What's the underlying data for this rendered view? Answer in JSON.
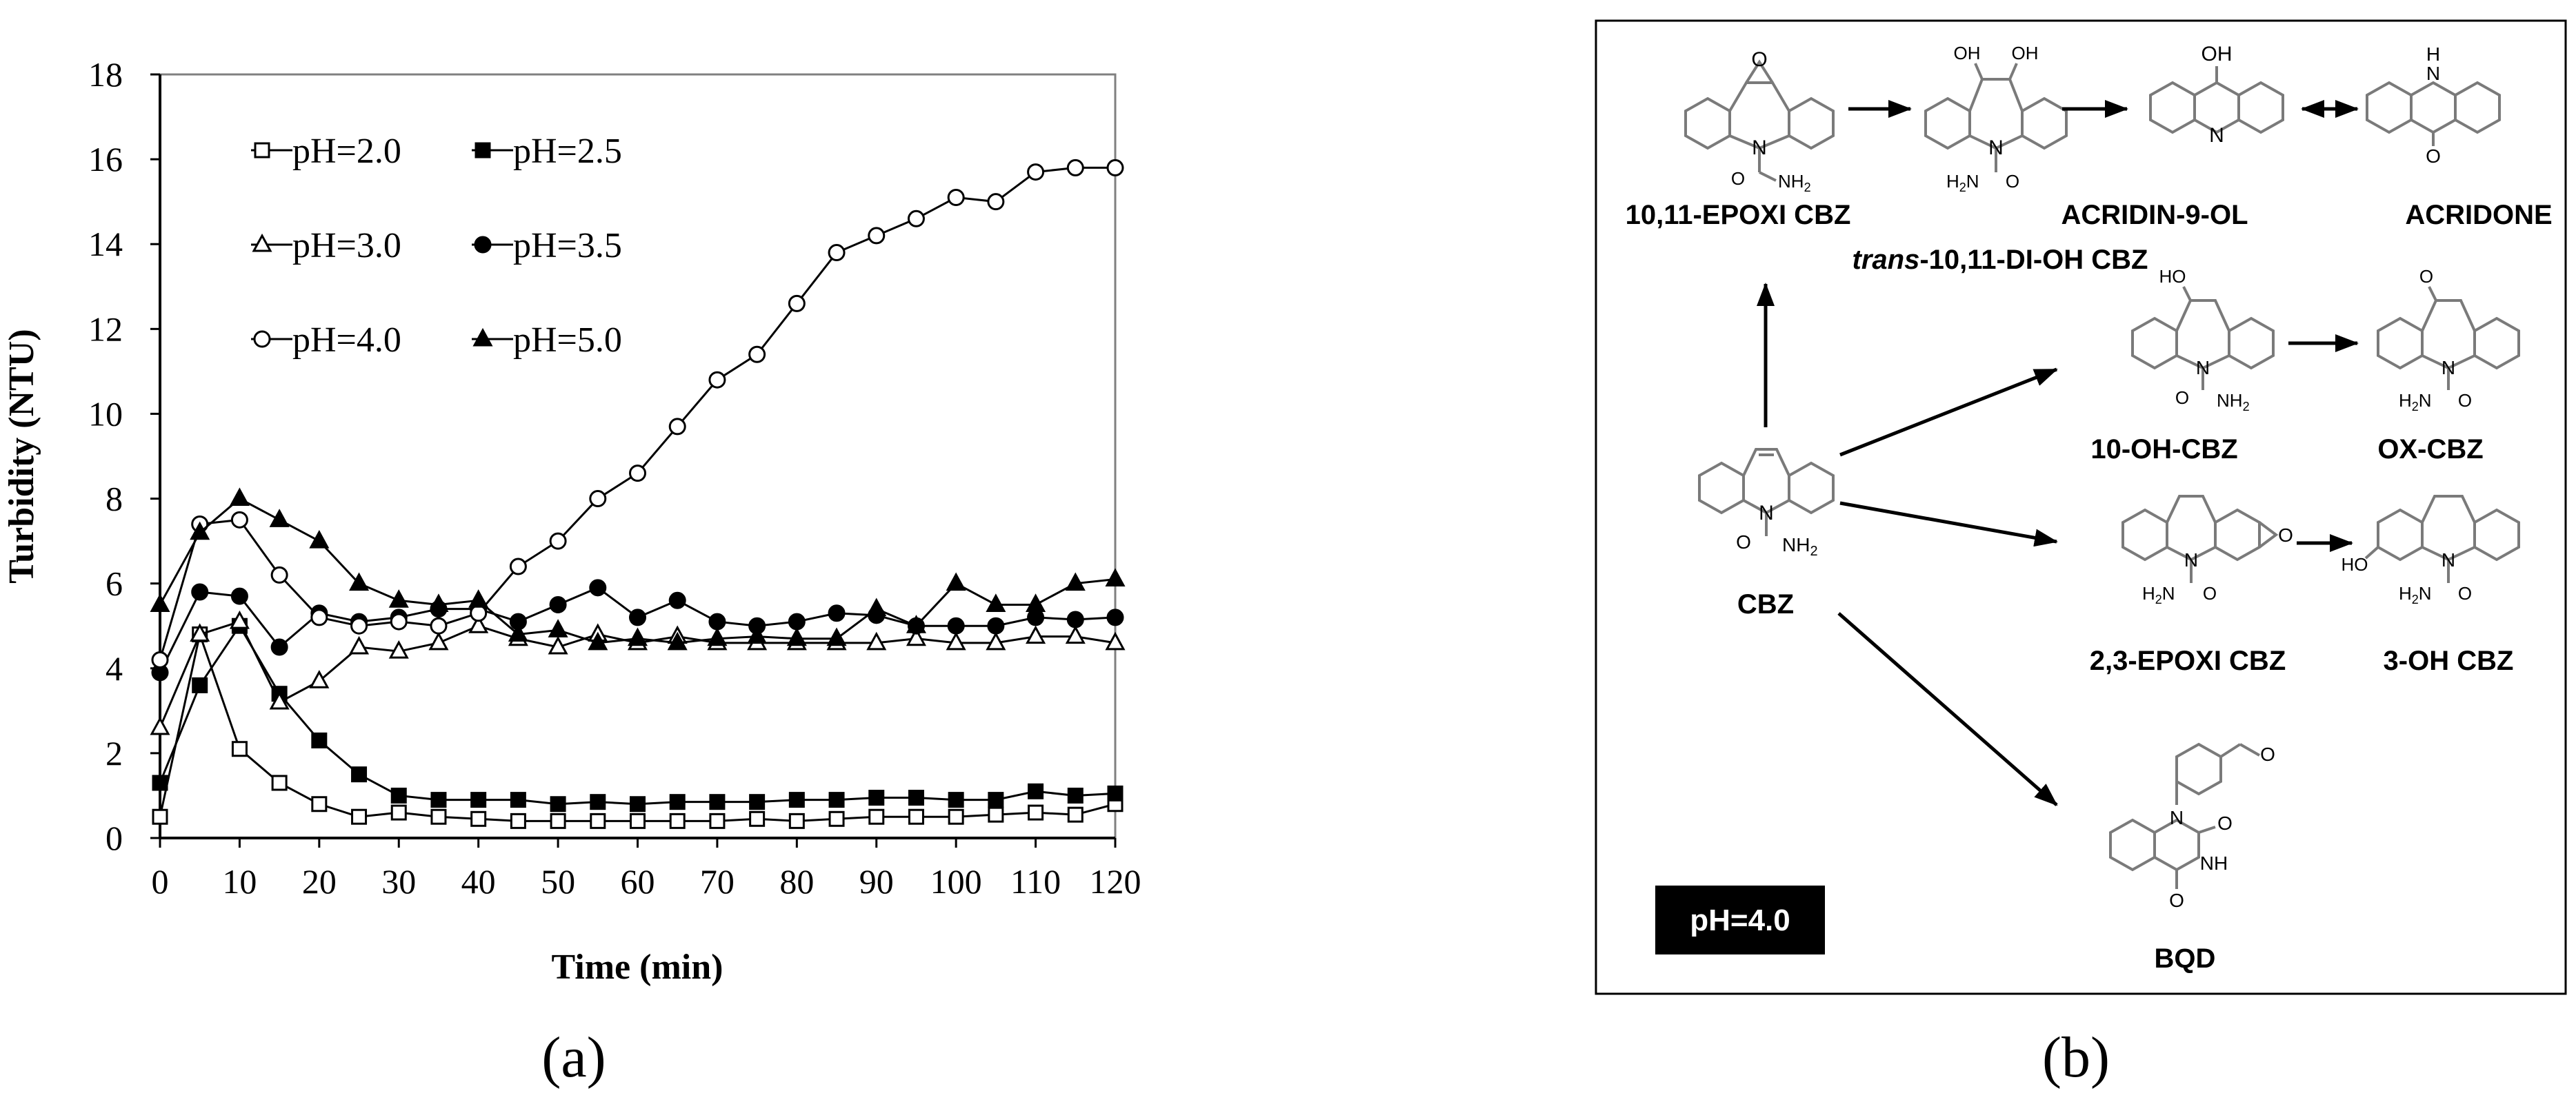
{
  "chart_data": {
    "type": "line",
    "xlabel": "Time (min)",
    "ylabel": "Turbidity (NTU)",
    "xlim": [
      0,
      120
    ],
    "ylim": [
      0,
      18
    ],
    "x_ticks": [
      "0",
      "10",
      "20",
      "30",
      "40",
      "50",
      "60",
      "70",
      "80",
      "90",
      "100",
      "110",
      "120"
    ],
    "y_ticks": [
      "0",
      "2",
      "4",
      "6",
      "8",
      "10",
      "12",
      "14",
      "16",
      "18"
    ],
    "grid": false,
    "legend_position": "upper-left",
    "x": [
      0,
      5,
      10,
      15,
      20,
      25,
      30,
      35,
      40,
      45,
      50,
      55,
      60,
      65,
      70,
      75,
      80,
      85,
      90,
      95,
      100,
      105,
      110,
      115,
      120
    ],
    "series": [
      {
        "name": "pH=2.0",
        "marker": "square-open",
        "values": [
          0.5,
          4.8,
          2.1,
          1.3,
          0.8,
          0.5,
          0.6,
          0.5,
          0.45,
          0.4,
          0.4,
          0.4,
          0.4,
          0.4,
          0.4,
          0.45,
          0.4,
          0.45,
          0.5,
          0.5,
          0.5,
          0.55,
          0.6,
          0.55,
          0.8
        ]
      },
      {
        "name": "pH=2.5",
        "marker": "square-filled",
        "values": [
          1.3,
          3.6,
          5.0,
          3.4,
          2.3,
          1.5,
          1.0,
          0.9,
          0.9,
          0.9,
          0.8,
          0.85,
          0.8,
          0.85,
          0.85,
          0.85,
          0.9,
          0.9,
          0.95,
          0.95,
          0.9,
          0.9,
          1.1,
          1.0,
          1.05
        ]
      },
      {
        "name": "pH=3.0",
        "marker": "triangle-open",
        "values": [
          2.6,
          4.8,
          5.1,
          3.2,
          3.7,
          4.5,
          4.4,
          4.6,
          5.0,
          4.7,
          4.5,
          4.8,
          4.6,
          4.75,
          4.6,
          4.6,
          4.6,
          4.6,
          4.6,
          4.7,
          4.6,
          4.6,
          4.75,
          4.75,
          4.6
        ]
      },
      {
        "name": "pH=3.5",
        "marker": "circle-filled",
        "values": [
          3.9,
          5.8,
          5.7,
          4.5,
          5.3,
          5.1,
          5.2,
          5.4,
          5.4,
          5.1,
          5.5,
          5.9,
          5.2,
          5.6,
          5.1,
          5.0,
          5.1,
          5.3,
          5.25,
          5.0,
          5.0,
          5.0,
          5.2,
          5.15,
          5.2
        ]
      },
      {
        "name": "pH=4.0",
        "marker": "circle-open",
        "values": [
          4.2,
          7.4,
          7.5,
          6.2,
          5.2,
          5.0,
          5.1,
          5.0,
          5.3,
          6.4,
          7.0,
          8.0,
          8.6,
          9.7,
          10.8,
          11.4,
          12.6,
          13.8,
          14.2,
          14.6,
          15.1,
          15.0,
          15.7,
          15.8,
          15.8
        ]
      },
      {
        "name": "pH=5.0",
        "marker": "triangle-filled",
        "values": [
          5.5,
          7.2,
          8.0,
          7.5,
          7.0,
          6.0,
          5.6,
          5.5,
          5.6,
          4.8,
          4.9,
          4.6,
          4.7,
          4.6,
          4.7,
          4.75,
          4.7,
          4.7,
          5.4,
          5.0,
          6.0,
          5.5,
          5.5,
          6.0,
          6.1
        ]
      }
    ]
  },
  "diagram": {
    "compounds": {
      "epoxi": "10,11-EPOXI CBZ",
      "dioh_prefix": "trans",
      "dioh_rest": "-10,11-DI-OH CBZ",
      "acridinol": "ACRIDIN-9-OL",
      "acridone": "ACRIDONE",
      "oh10": "10-OH-CBZ",
      "oxcbz": "OX-CBZ",
      "cbz": "CBZ",
      "epoxi23": "2,3-EPOXI CBZ",
      "oh3": "3-OH CBZ",
      "bqd": "BQD"
    },
    "atoms": {
      "o": "O",
      "oh": "OH",
      "n": "N",
      "nh": "NH",
      "h": "H",
      "nh2": "NH",
      "h2n": "H",
      "sub2": "2"
    },
    "condition_badge": "pH=4.0"
  },
  "panel_labels": {
    "a": "(a)",
    "b": "(b)"
  },
  "colors": {
    "ink": "#000000",
    "structure": "#7a7a7a",
    "badge_bg": "#000000",
    "badge_text": "#ffffff"
  }
}
